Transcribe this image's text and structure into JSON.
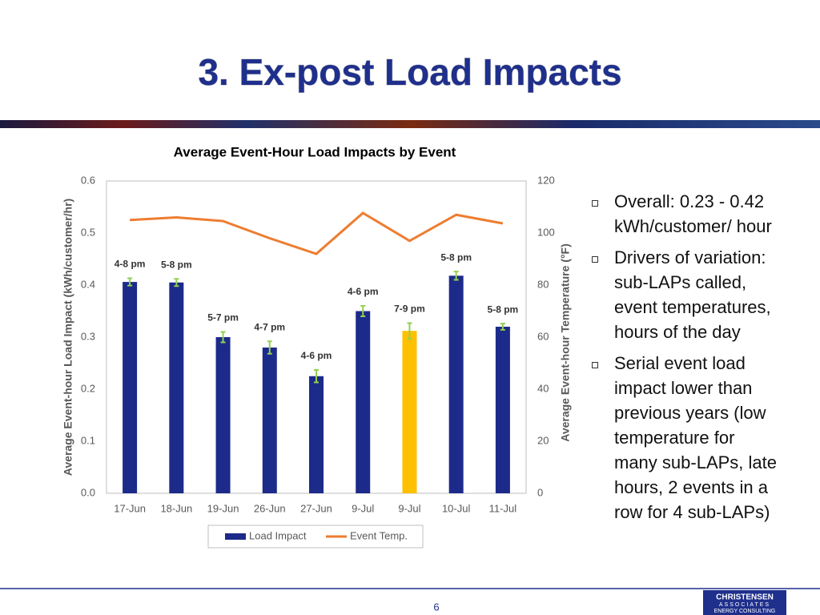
{
  "slide": {
    "title": "3. Ex-post Load Impacts",
    "bullets": [
      "Overall: 0.23 - 0.42 kWh/customer/ hour",
      "Drivers of variation: sub-LAPs called, event temperatures, hours of the day",
      "Serial event load impact lower than previous years (low temperature for many sub-LAPs, late hours, 2 events in a row for 4 sub-LAPs)"
    ],
    "page_number": "6",
    "logo": [
      "CHRISTENSEN",
      "ASSOCIATES",
      "ENERGY CONSULTING"
    ]
  },
  "chart_data": {
    "type": "bar",
    "title": "Average Event-Hour Load Impacts by Event",
    "y_label": "Average Event-hour Load Impact (kWh/customer/hr)",
    "y2_label": "Average Event-hour Temperature (°F)",
    "categories": [
      "17-Jun",
      "18-Jun",
      "19-Jun",
      "26-Jun",
      "27-Jun",
      "9-Jul",
      "9-Jul",
      "10-Jul",
      "11-Jul"
    ],
    "annotations": [
      "4-8 pm",
      "5-8 pm",
      "5-7 pm",
      "4-7 pm",
      "4-6 pm",
      "4-6 pm",
      "7-9 pm",
      "5-8 pm",
      "5-8 pm"
    ],
    "series": [
      {
        "name": "Load Impact",
        "type": "bar",
        "color": "#1c2a8a",
        "colors": [
          "#1c2a8a",
          "#1c2a8a",
          "#1c2a8a",
          "#1c2a8a",
          "#1c2a8a",
          "#1c2a8a",
          "#ffc000",
          "#1c2a8a",
          "#1c2a8a"
        ],
        "values": [
          0.406,
          0.405,
          0.3,
          0.28,
          0.225,
          0.35,
          0.312,
          0.418,
          0.32
        ],
        "errors": [
          0.007,
          0.007,
          0.01,
          0.012,
          0.012,
          0.01,
          0.015,
          0.008,
          0.006
        ],
        "error_color": "#92d050"
      },
      {
        "name": "Event Temp.",
        "type": "line",
        "axis": "y2",
        "color": "#ed7d31",
        "values": [
          105,
          106,
          104.6,
          98,
          92,
          107.7,
          97,
          107,
          103.7
        ]
      }
    ],
    "ylim": [
      0,
      0.6
    ],
    "yticks": [
      {
        "value": 0,
        "label": "0.0"
      },
      0.1,
      0.2,
      0.3,
      0.4,
      0.5,
      0.6
    ],
    "y2lim": [
      0,
      120
    ],
    "y2ticks": [
      0,
      20,
      40,
      60,
      80,
      100,
      120
    ],
    "grid": false
  }
}
